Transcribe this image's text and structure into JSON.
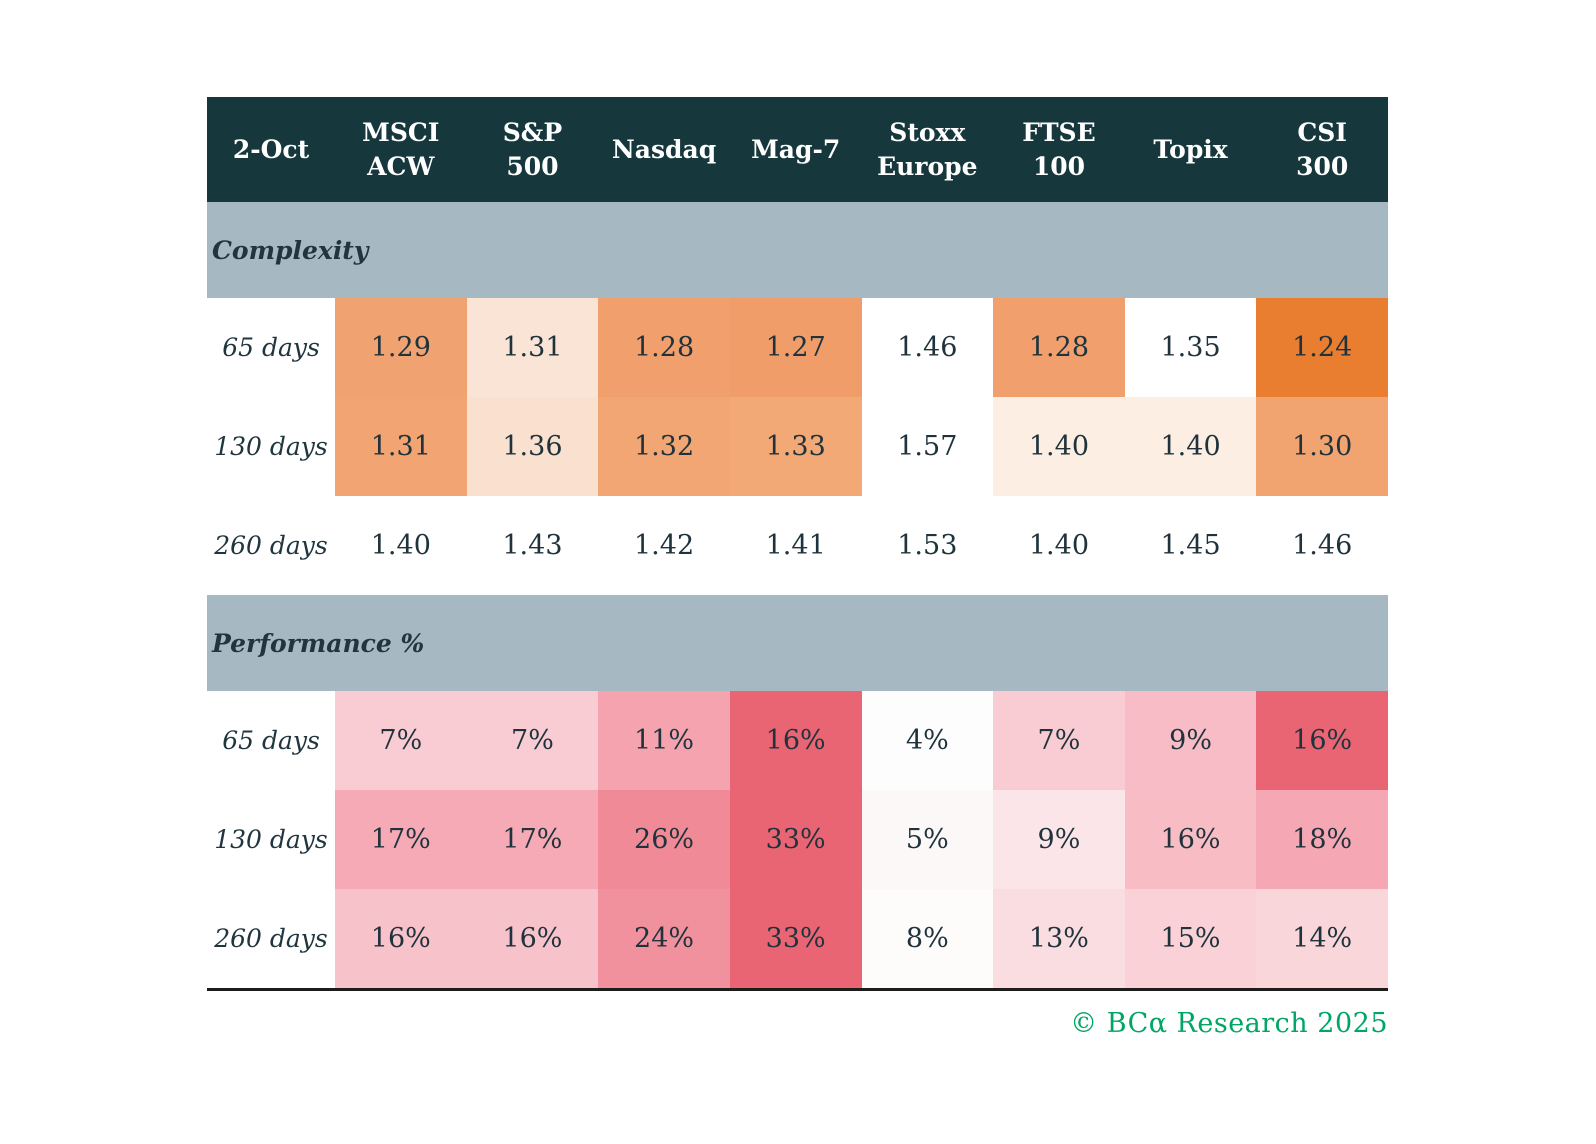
{
  "table": {
    "header": {
      "date_label": "2-Oct",
      "columns": [
        "MSCI\nACW",
        "S&P\n500",
        "Nasdaq",
        "Mag-7",
        "Stoxx\nEurope",
        "FTSE\n100",
        "Topix",
        "CSI\n300"
      ]
    },
    "sections": [
      {
        "title": "Complexity",
        "rows": [
          {
            "label": "65 days",
            "cells": [
              {
                "text": "1.29",
                "bg": "#f1a271"
              },
              {
                "text": "1.31",
                "bg": "#fae4d5"
              },
              {
                "text": "1.28",
                "bg": "#f1a06d"
              },
              {
                "text": "1.27",
                "bg": "#f09d69"
              },
              {
                "text": "1.46",
                "bg": "#ffffff"
              },
              {
                "text": "1.28",
                "bg": "#f1a06d"
              },
              {
                "text": "1.35",
                "bg": "#ffffff"
              },
              {
                "text": "1.24",
                "bg": "#e97e31"
              }
            ]
          },
          {
            "label": "130 days",
            "cells": [
              {
                "text": "1.31",
                "bg": "#f2a572"
              },
              {
                "text": "1.36",
                "bg": "#f9e0cf"
              },
              {
                "text": "1.32",
                "bg": "#f2a673"
              },
              {
                "text": "1.33",
                "bg": "#f3a976"
              },
              {
                "text": "1.57",
                "bg": "#ffffff"
              },
              {
                "text": "1.40",
                "bg": "#fceee3"
              },
              {
                "text": "1.40",
                "bg": "#fceee3"
              },
              {
                "text": "1.30",
                "bg": "#f2a470"
              }
            ]
          },
          {
            "label": "260 days",
            "cells": [
              {
                "text": "1.40",
                "bg": "#ffffff"
              },
              {
                "text": "1.43",
                "bg": "#ffffff"
              },
              {
                "text": "1.42",
                "bg": "#ffffff"
              },
              {
                "text": "1.41",
                "bg": "#ffffff"
              },
              {
                "text": "1.53",
                "bg": "#ffffff"
              },
              {
                "text": "1.40",
                "bg": "#ffffff"
              },
              {
                "text": "1.45",
                "bg": "#ffffff"
              },
              {
                "text": "1.46",
                "bg": "#ffffff"
              }
            ]
          }
        ]
      },
      {
        "title": "Performance %",
        "rows": [
          {
            "label": "65 days",
            "cells": [
              {
                "text": "7%",
                "bg": "#f9ccd3"
              },
              {
                "text": "7%",
                "bg": "#f9ccd3"
              },
              {
                "text": "11%",
                "bg": "#f4a3af"
              },
              {
                "text": "16%",
                "bg": "#ea6573"
              },
              {
                "text": "4%",
                "bg": "#fefdfd"
              },
              {
                "text": "7%",
                "bg": "#f9ccd3"
              },
              {
                "text": "9%",
                "bg": "#f7bcc5"
              },
              {
                "text": "16%",
                "bg": "#ea6573"
              }
            ]
          },
          {
            "label": "130 days",
            "cells": [
              {
                "text": "17%",
                "bg": "#f5aab5"
              },
              {
                "text": "17%",
                "bg": "#f5aab5"
              },
              {
                "text": "26%",
                "bg": "#ef8a96"
              },
              {
                "text": "33%",
                "bg": "#ea6573"
              },
              {
                "text": "5%",
                "bg": "#fdf8f8"
              },
              {
                "text": "9%",
                "bg": "#fbe5e8"
              },
              {
                "text": "16%",
                "bg": "#f7bcc4"
              },
              {
                "text": "18%",
                "bg": "#f5a8b3"
              }
            ]
          },
          {
            "label": "260 days",
            "cells": [
              {
                "text": "16%",
                "bg": "#f8c2ca"
              },
              {
                "text": "16%",
                "bg": "#f8c2ca"
              },
              {
                "text": "24%",
                "bg": "#f0919d"
              },
              {
                "text": "33%",
                "bg": "#ea6573"
              },
              {
                "text": "8%",
                "bg": "#fefbfb"
              },
              {
                "text": "13%",
                "bg": "#fadde1"
              },
              {
                "text": "15%",
                "bg": "#f9d1d6"
              },
              {
                "text": "14%",
                "bg": "#f9d6da"
              }
            ]
          }
        ]
      }
    ]
  },
  "footer": {
    "text": "© BCα Research 2025"
  },
  "colors": {
    "header_bg": "#16383d",
    "section_band_bg": "#a6b9c3",
    "text_dark": "#20353e",
    "brand_green": "#00a666",
    "heat_orange_max": "#e97e31",
    "heat_red_max": "#ea6573"
  },
  "chart_data": [
    {
      "type": "heatmap",
      "title": "Complexity",
      "date": "2-Oct",
      "columns": [
        "MSCI ACW",
        "S&P 500",
        "Nasdaq",
        "Mag-7",
        "Stoxx Europe",
        "FTSE 100",
        "Topix",
        "CSI 300"
      ],
      "rows": [
        "65 days",
        "130 days",
        "260 days"
      ],
      "values": [
        [
          1.29,
          1.31,
          1.28,
          1.27,
          1.46,
          1.28,
          1.35,
          1.24
        ],
        [
          1.31,
          1.36,
          1.32,
          1.33,
          1.57,
          1.4,
          1.4,
          1.3
        ],
        [
          1.4,
          1.43,
          1.42,
          1.41,
          1.53,
          1.4,
          1.45,
          1.46
        ]
      ],
      "color_scale": "lower value = darker orange, per-row normalized"
    },
    {
      "type": "heatmap",
      "title": "Performance %",
      "date": "2-Oct",
      "unit": "%",
      "columns": [
        "MSCI ACW",
        "S&P 500",
        "Nasdaq",
        "Mag-7",
        "Stoxx Europe",
        "FTSE 100",
        "Topix",
        "CSI 300"
      ],
      "rows": [
        "65 days",
        "130 days",
        "260 days"
      ],
      "values": [
        [
          7,
          7,
          11,
          16,
          4,
          7,
          9,
          16
        ],
        [
          17,
          17,
          26,
          33,
          5,
          9,
          16,
          18
        ],
        [
          16,
          16,
          24,
          33,
          8,
          13,
          15,
          14
        ]
      ],
      "color_scale": "higher value = darker red/pink, per-row normalized"
    }
  ]
}
